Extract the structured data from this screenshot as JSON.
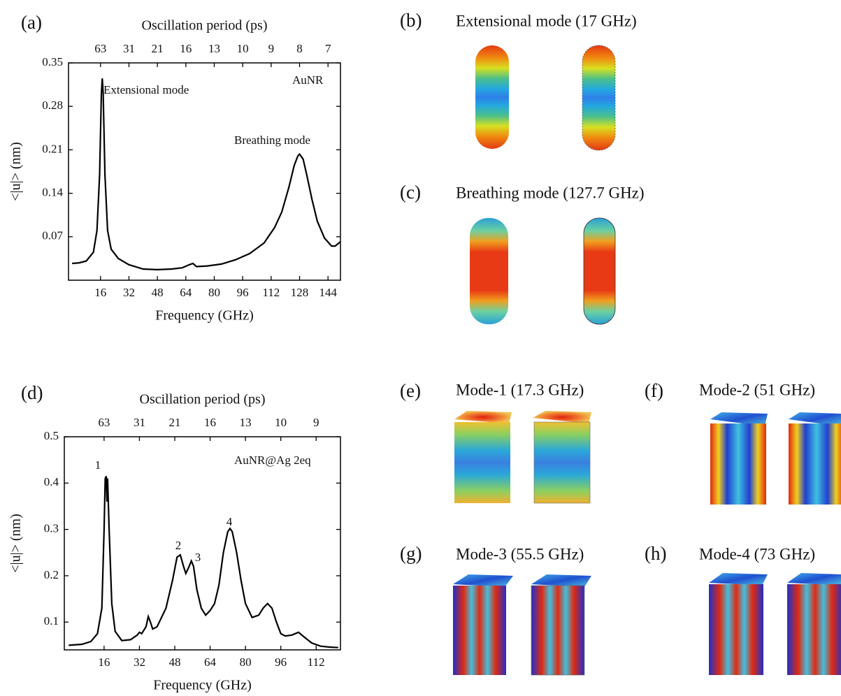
{
  "chart_data": [
    {
      "type": "line",
      "panel": "(a)",
      "x_label": "Frequency (GHz)",
      "y_label": "<|u|> (nm)",
      "x2_label": "Oscillation period (ps)",
      "color": "#000000",
      "grid": false,
      "x": [
        0,
        4,
        8,
        12,
        14,
        15.5,
        16.5,
        17,
        17.5,
        18.5,
        20,
        22,
        26,
        32,
        40,
        48,
        56,
        62,
        66,
        68,
        70,
        76,
        84,
        92,
        100,
        108,
        114,
        118,
        122,
        125,
        127,
        128,
        130,
        132,
        135,
        138,
        142,
        146,
        148,
        151
      ],
      "values": [
        0.027,
        0.028,
        0.031,
        0.045,
        0.08,
        0.17,
        0.3,
        0.325,
        0.3,
        0.17,
        0.08,
        0.05,
        0.035,
        0.025,
        0.018,
        0.017,
        0.018,
        0.02,
        0.025,
        0.027,
        0.022,
        0.023,
        0.026,
        0.033,
        0.043,
        0.06,
        0.085,
        0.11,
        0.15,
        0.185,
        0.2,
        0.203,
        0.195,
        0.17,
        0.13,
        0.095,
        0.068,
        0.055,
        0.055,
        0.062
      ],
      "xlim": [
        -2,
        151
      ],
      "xticks": [
        16,
        32,
        48,
        64,
        80,
        96,
        112,
        128,
        144
      ],
      "x2ticks": [
        {
          "value": 16,
          "label": "63"
        },
        {
          "value": 32,
          "label": "31"
        },
        {
          "value": 48,
          "label": "21"
        },
        {
          "value": 64,
          "label": "16"
        },
        {
          "value": 80,
          "label": "13"
        },
        {
          "value": 96,
          "label": "10"
        },
        {
          "value": 112,
          "label": "9"
        },
        {
          "value": 128,
          "label": "8"
        },
        {
          "value": 144,
          "label": "7"
        }
      ],
      "ylim": [
        0,
        0.35
      ],
      "yticks": [
        0.07,
        0.14,
        0.21,
        0.28,
        0.35
      ],
      "annotations": [
        {
          "text": "Extensional mode",
          "color": "#000000"
        },
        {
          "text": "AuNR",
          "color": "#000000"
        },
        {
          "text": "Breathing mode",
          "color": "#000000"
        }
      ]
    },
    {
      "type": "line",
      "panel": "(d)",
      "x_label": "Frequency (GHz)",
      "y_label": "<|u|> (nm)",
      "x2_label": "Oscillation period (ps)",
      "color": "#000000",
      "grid": false,
      "x": [
        0,
        6,
        10,
        13,
        15,
        16,
        16.5,
        17,
        17.3,
        17.6,
        18.3,
        19.5,
        21,
        24,
        28,
        31,
        32,
        33,
        35,
        36,
        37,
        38,
        40,
        44,
        47,
        49,
        50.5,
        52,
        53,
        54.5,
        55.5,
        56.5,
        58,
        60,
        62,
        64,
        66,
        68,
        70,
        72,
        73,
        74,
        76,
        78,
        80,
        83,
        86,
        88,
        90,
        92,
        94,
        96,
        98,
        101,
        104,
        106,
        110,
        114,
        118,
        122
      ],
      "values": [
        0.05,
        0.052,
        0.058,
        0.075,
        0.13,
        0.3,
        0.41,
        0.415,
        0.36,
        0.41,
        0.3,
        0.14,
        0.08,
        0.06,
        0.062,
        0.072,
        0.078,
        0.075,
        0.09,
        0.112,
        0.1,
        0.085,
        0.09,
        0.13,
        0.19,
        0.24,
        0.245,
        0.22,
        0.205,
        0.22,
        0.232,
        0.22,
        0.17,
        0.13,
        0.115,
        0.125,
        0.14,
        0.18,
        0.25,
        0.295,
        0.302,
        0.295,
        0.25,
        0.19,
        0.14,
        0.11,
        0.115,
        0.13,
        0.14,
        0.13,
        0.1,
        0.075,
        0.07,
        0.072,
        0.078,
        0.07,
        0.055,
        0.048,
        0.046,
        0.045
      ],
      "xlim": [
        -2,
        123
      ],
      "xticks": [
        16,
        32,
        48,
        64,
        80,
        96,
        112
      ],
      "x2ticks": [
        {
          "value": 16,
          "label": "63"
        },
        {
          "value": 32,
          "label": "31"
        },
        {
          "value": 48,
          "label": "21"
        },
        {
          "value": 64,
          "label": "16"
        },
        {
          "value": 80,
          "label": "13"
        },
        {
          "value": 96,
          "label": "10"
        },
        {
          "value": 112,
          "label": "9"
        }
      ],
      "ylim": [
        0.04,
        0.5
      ],
      "yticks": [
        0.1,
        0.2,
        0.3,
        0.4,
        0.5
      ],
      "annotations": [
        {
          "text": "AuNR@Ag 2eq",
          "color": "#000000"
        },
        {
          "text": "1",
          "color": "#e01010"
        },
        {
          "text": "2",
          "color": "#e01010"
        },
        {
          "text": "3",
          "color": "#e01010"
        },
        {
          "text": "4",
          "color": "#e01010"
        }
      ]
    }
  ],
  "panels": [
    {
      "label": "(b)",
      "title": "Extensional mode (17 GHz)"
    },
    {
      "label": "(c)",
      "title": "Breathing mode (127.7 GHz)"
    },
    {
      "label": "(e)",
      "title": "Mode-1 (17.3 GHz)"
    },
    {
      "label": "(f)",
      "title": "Mode-2 (51 GHz)"
    },
    {
      "label": "(g)",
      "title": "Mode-3 (55.5 GHz)"
    },
    {
      "label": "(h)",
      "title": "Mode-4 (73 GHz)"
    }
  ]
}
